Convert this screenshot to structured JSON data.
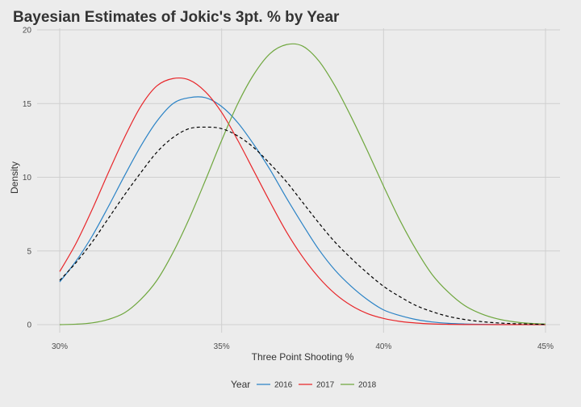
{
  "chart_data": {
    "type": "line",
    "title": "Bayesian Estimates of Jokic's 3pt. % by Year",
    "xlabel": "Three Point Shooting %",
    "ylabel": "Density",
    "xlim": [
      0.3,
      0.45
    ],
    "ylim": [
      0,
      20
    ],
    "x_ticks": [
      {
        "value": 0.3,
        "label": "30%"
      },
      {
        "value": 0.35,
        "label": "35%"
      },
      {
        "value": 0.4,
        "label": "40%"
      },
      {
        "value": 0.45,
        "label": "45%"
      }
    ],
    "y_ticks": [
      {
        "value": 0,
        "label": "0"
      },
      {
        "value": 5,
        "label": "5"
      },
      {
        "value": 10,
        "label": "10"
      },
      {
        "value": 15,
        "label": "15"
      },
      {
        "value": 20,
        "label": "20"
      }
    ],
    "grid": true,
    "legend": {
      "title": "Year",
      "position": "bottom"
    },
    "x": [
      0.3,
      0.305,
      0.31,
      0.315,
      0.32,
      0.325,
      0.33,
      0.335,
      0.34,
      0.345,
      0.35,
      0.355,
      0.36,
      0.365,
      0.37,
      0.375,
      0.38,
      0.385,
      0.39,
      0.395,
      0.4,
      0.405,
      0.41,
      0.415,
      0.42,
      0.425,
      0.43,
      0.435,
      0.44,
      0.445,
      0.45
    ],
    "series": [
      {
        "name": "2016",
        "color": "#2b83c6",
        "dashed": false,
        "values": [
          2.9,
          4.3,
          6.0,
          8.0,
          10.1,
          12.1,
          13.8,
          15.0,
          15.4,
          15.4,
          14.8,
          13.7,
          12.2,
          10.5,
          8.6,
          6.8,
          5.1,
          3.7,
          2.6,
          1.7,
          1.0,
          0.62,
          0.35,
          0.18,
          0.09,
          0.045,
          0.02,
          0.01,
          0.004,
          0.001,
          0.0
        ]
      },
      {
        "name": "2017",
        "color": "#e8262a",
        "dashed": false,
        "values": [
          3.6,
          5.5,
          7.8,
          10.3,
          12.7,
          14.8,
          16.2,
          16.7,
          16.6,
          15.8,
          14.4,
          12.5,
          10.4,
          8.3,
          6.3,
          4.6,
          3.2,
          2.1,
          1.3,
          0.75,
          0.42,
          0.22,
          0.11,
          0.05,
          0.022,
          0.009,
          0.004,
          0.001,
          0.0,
          0.0,
          0.0
        ]
      },
      {
        "name": "2018",
        "color": "#6fa73e",
        "dashed": false,
        "values": [
          0.0,
          0.03,
          0.12,
          0.35,
          0.8,
          1.7,
          3.0,
          4.9,
          7.2,
          9.8,
          12.5,
          15.0,
          17.0,
          18.4,
          19.0,
          18.9,
          17.9,
          16.2,
          14.1,
          11.8,
          9.4,
          7.1,
          5.1,
          3.4,
          2.2,
          1.3,
          0.75,
          0.4,
          0.2,
          0.09,
          0.04
        ]
      },
      {
        "name": "",
        "color": "#000000",
        "dashed": true,
        "values": [
          3.0,
          4.2,
          5.6,
          7.2,
          8.8,
          10.3,
          11.7,
          12.7,
          13.3,
          13.4,
          13.3,
          12.8,
          12.0,
          10.9,
          9.7,
          8.3,
          6.9,
          5.6,
          4.5,
          3.5,
          2.6,
          1.9,
          1.3,
          0.88,
          0.56,
          0.35,
          0.21,
          0.12,
          0.07,
          0.04,
          0.02
        ]
      }
    ]
  }
}
